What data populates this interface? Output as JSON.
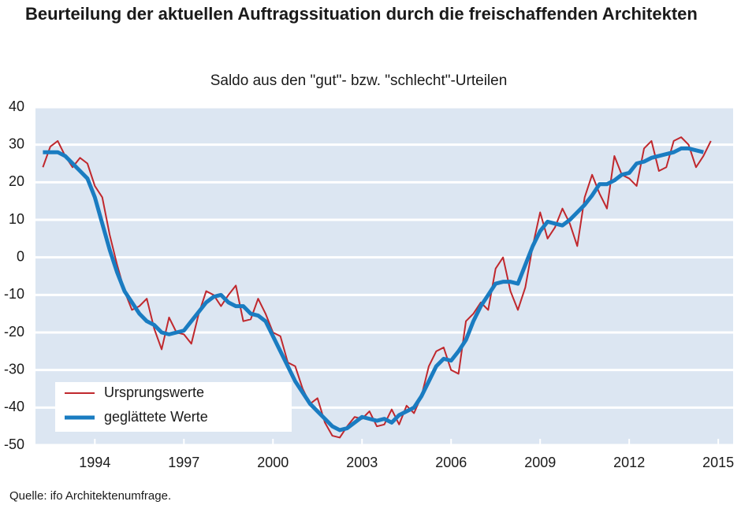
{
  "chart_data": {
    "type": "line",
    "title": "Beurteilung der aktuellen Auftragssituation durch die freischaffenden Architekten",
    "subtitle": "Saldo aus den \"gut\"- bzw. \"schlecht\"-Urteilen",
    "source": "Quelle: ifo Architektenumfrage.",
    "x": [
      1992.25,
      1992.5,
      1992.75,
      1993,
      1993.25,
      1993.5,
      1993.75,
      1994,
      1994.25,
      1994.5,
      1994.75,
      1995,
      1995.25,
      1995.5,
      1995.75,
      1996,
      1996.25,
      1996.5,
      1996.75,
      1997,
      1997.25,
      1997.5,
      1997.75,
      1998,
      1998.25,
      1998.5,
      1998.75,
      1999,
      1999.25,
      1999.5,
      1999.75,
      2000,
      2000.25,
      2000.5,
      2000.75,
      2001,
      2001.25,
      2001.5,
      2001.75,
      2002,
      2002.25,
      2002.5,
      2002.75,
      2003,
      2003.25,
      2003.5,
      2003.75,
      2004,
      2004.25,
      2004.5,
      2004.75,
      2005,
      2005.25,
      2005.5,
      2005.75,
      2006,
      2006.25,
      2006.5,
      2006.75,
      2007,
      2007.25,
      2007.5,
      2007.75,
      2008,
      2008.25,
      2008.5,
      2008.75,
      2009,
      2009.25,
      2009.5,
      2009.75,
      2010,
      2010.25,
      2010.5,
      2010.75,
      2011,
      2011.25,
      2011.5,
      2011.75,
      2012,
      2012.25,
      2012.5,
      2012.75,
      2013,
      2013.25,
      2013.5,
      2013.75,
      2014,
      2014.25,
      2014.5,
      2014.75
    ],
    "series": [
      {
        "name": "Ursprungswerte",
        "color": "#c0282d",
        "width": 2,
        "values": [
          24,
          29.5,
          31,
          27,
          24,
          26.5,
          25,
          19,
          16,
          6,
          -2,
          -9,
          -14,
          -13,
          -11,
          -19,
          -24.5,
          -16,
          -20,
          -20.5,
          -23,
          -15,
          -9,
          -10,
          -13,
          -10,
          -7.5,
          -17,
          -16.5,
          -11,
          -15,
          -20,
          -21,
          -28,
          -29,
          -35,
          -39,
          -37.5,
          -44,
          -47.5,
          -48,
          -45,
          -42.5,
          -43,
          -41,
          -45,
          -44.5,
          -40.5,
          -44.5,
          -39.5,
          -41.5,
          -37,
          -29,
          -25,
          -24,
          -30,
          -31,
          -17,
          -15,
          -12,
          -14,
          -3,
          0,
          -9,
          -14,
          -8,
          3,
          12,
          5,
          8,
          13,
          9,
          3,
          16,
          22,
          17,
          13,
          27,
          22,
          21,
          19,
          29,
          31,
          23,
          24,
          31,
          32,
          30,
          24,
          27,
          31
        ]
      },
      {
        "name": "geglättete Werte",
        "color": "#1a7cc1",
        "width": 5,
        "values": [
          28,
          28,
          28,
          27,
          25,
          23,
          21,
          16,
          9,
          2,
          -4,
          -9,
          -12,
          -15,
          -17,
          -18,
          -20,
          -20.5,
          -20,
          -19.5,
          -17,
          -14.5,
          -12,
          -10.5,
          -10,
          -12,
          -13,
          -13,
          -15,
          -15.5,
          -17,
          -21,
          -25,
          -29,
          -33,
          -36,
          -39,
          -41,
          -43,
          -45,
          -46,
          -45.5,
          -44,
          -42.5,
          -43,
          -43.5,
          -43,
          -44,
          -42,
          -41,
          -40,
          -37,
          -33,
          -29,
          -27,
          -27.5,
          -25,
          -22,
          -17,
          -13,
          -10,
          -7,
          -6.5,
          -6.5,
          -7,
          -2,
          3,
          7,
          9.5,
          9,
          8.5,
          10,
          12,
          14,
          16.5,
          19.5,
          19.5,
          20.5,
          22,
          22.5,
          25,
          25.5,
          26.5,
          27,
          27.5,
          28,
          29,
          29,
          28.5,
          28,
          null
        ]
      }
    ],
    "xlim": [
      1992,
      2015.5
    ],
    "xticks": [
      1994,
      1997,
      2000,
      2003,
      2006,
      2009,
      2012,
      2015
    ],
    "ylim": [
      -50,
      40
    ],
    "yticks": [
      -50,
      -40,
      -30,
      -20,
      -10,
      0,
      10,
      20,
      30,
      40
    ],
    "grid": true,
    "legend": "lower left",
    "background": "#dce6f2"
  }
}
